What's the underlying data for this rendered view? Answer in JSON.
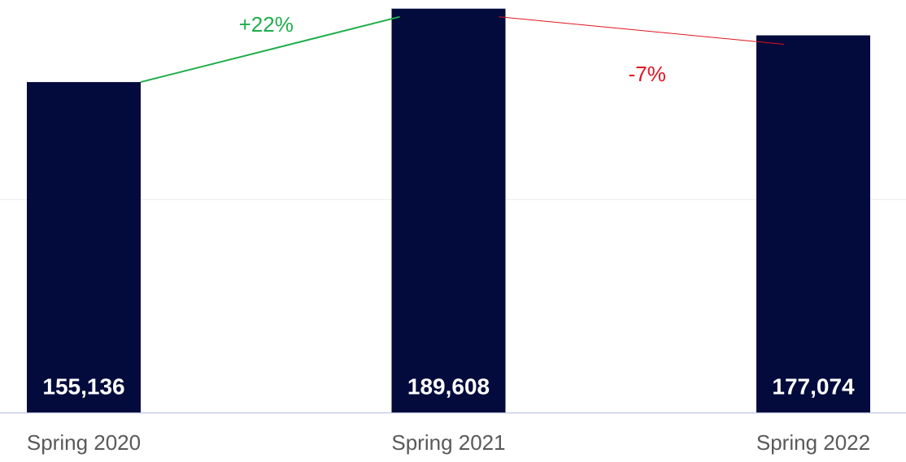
{
  "chart_data": {
    "type": "bar",
    "categories": [
      "Spring 2020",
      "Spring 2021",
      "Spring 2022"
    ],
    "values": [
      155136,
      189608,
      177074
    ],
    "value_labels": [
      "155,136",
      "189,608",
      "177,074"
    ],
    "color": "#020b3c",
    "ylim": [
      0,
      200000
    ],
    "yticks": [
      0,
      100000,
      200000
    ],
    "grid": true,
    "annotations": [
      {
        "text": "+22%",
        "color": "#1fae4b"
      },
      {
        "text": "-7%",
        "color": "#e0141e"
      }
    ]
  }
}
